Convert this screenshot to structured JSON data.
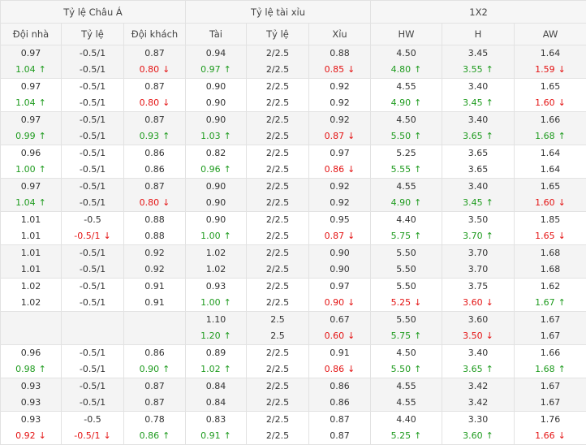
{
  "headers": {
    "groups": [
      "Tỷ lệ Châu Á",
      "Tỷ lệ tài xỉu",
      "1X2"
    ],
    "columns": [
      "Đội nhà",
      "Tỷ lệ",
      "Đội khách",
      "Tài",
      "Tỷ lệ",
      "Xỉu",
      "HW",
      "H",
      "AW"
    ]
  },
  "rows": [
    [
      [
        "0.97",
        "1.04",
        "up"
      ],
      [
        "-0.5/1",
        "-0.5/1",
        "same"
      ],
      [
        "0.87",
        "0.80",
        "down"
      ],
      [
        "0.94",
        "0.97",
        "up"
      ],
      [
        "2/2.5",
        "2/2.5",
        "same"
      ],
      [
        "0.88",
        "0.85",
        "down"
      ],
      [
        "4.50",
        "4.80",
        "up"
      ],
      [
        "3.45",
        "3.55",
        "up"
      ],
      [
        "1.64",
        "1.59",
        "down"
      ]
    ],
    [
      [
        "0.97",
        "1.04",
        "up"
      ],
      [
        "-0.5/1",
        "-0.5/1",
        "same"
      ],
      [
        "0.87",
        "0.80",
        "down"
      ],
      [
        "0.90",
        "0.90",
        "same"
      ],
      [
        "2/2.5",
        "2/2.5",
        "same"
      ],
      [
        "0.92",
        "0.92",
        "same"
      ],
      [
        "4.55",
        "4.90",
        "up"
      ],
      [
        "3.40",
        "3.45",
        "up"
      ],
      [
        "1.65",
        "1.60",
        "down"
      ]
    ],
    [
      [
        "0.97",
        "0.99",
        "up"
      ],
      [
        "-0.5/1",
        "-0.5/1",
        "same"
      ],
      [
        "0.87",
        "0.93",
        "up"
      ],
      [
        "0.90",
        "1.03",
        "up"
      ],
      [
        "2/2.5",
        "2/2.5",
        "same"
      ],
      [
        "0.92",
        "0.87",
        "down"
      ],
      [
        "4.50",
        "5.50",
        "up"
      ],
      [
        "3.40",
        "3.65",
        "up"
      ],
      [
        "1.66",
        "1.68",
        "up"
      ]
    ],
    [
      [
        "0.96",
        "1.00",
        "up"
      ],
      [
        "-0.5/1",
        "-0.5/1",
        "same"
      ],
      [
        "0.86",
        "0.86",
        "same"
      ],
      [
        "0.82",
        "0.96",
        "up"
      ],
      [
        "2/2.5",
        "2/2.5",
        "same"
      ],
      [
        "0.97",
        "0.86",
        "down"
      ],
      [
        "5.25",
        "5.55",
        "up"
      ],
      [
        "3.65",
        "3.65",
        "same"
      ],
      [
        "1.64",
        "1.64",
        "same"
      ]
    ],
    [
      [
        "0.97",
        "1.04",
        "up"
      ],
      [
        "-0.5/1",
        "-0.5/1",
        "same"
      ],
      [
        "0.87",
        "0.80",
        "down"
      ],
      [
        "0.90",
        "0.90",
        "same"
      ],
      [
        "2/2.5",
        "2/2.5",
        "same"
      ],
      [
        "0.92",
        "0.92",
        "same"
      ],
      [
        "4.55",
        "4.90",
        "up"
      ],
      [
        "3.40",
        "3.45",
        "up"
      ],
      [
        "1.65",
        "1.60",
        "down"
      ]
    ],
    [
      [
        "1.01",
        "1.01",
        "same"
      ],
      [
        "-0.5",
        "-0.5/1",
        "down"
      ],
      [
        "0.88",
        "0.88",
        "same"
      ],
      [
        "0.90",
        "1.00",
        "up"
      ],
      [
        "2/2.5",
        "2/2.5",
        "same"
      ],
      [
        "0.95",
        "0.87",
        "down"
      ],
      [
        "4.40",
        "5.75",
        "up"
      ],
      [
        "3.50",
        "3.70",
        "up"
      ],
      [
        "1.85",
        "1.65",
        "down"
      ]
    ],
    [
      [
        "1.01",
        "1.01",
        "same"
      ],
      [
        "-0.5/1",
        "-0.5/1",
        "same"
      ],
      [
        "0.92",
        "0.92",
        "same"
      ],
      [
        "1.02",
        "1.02",
        "same"
      ],
      [
        "2/2.5",
        "2/2.5",
        "same"
      ],
      [
        "0.90",
        "0.90",
        "same"
      ],
      [
        "5.50",
        "5.50",
        "same"
      ],
      [
        "3.70",
        "3.70",
        "same"
      ],
      [
        "1.68",
        "1.68",
        "same"
      ]
    ],
    [
      [
        "1.02",
        "1.02",
        "same"
      ],
      [
        "-0.5/1",
        "-0.5/1",
        "same"
      ],
      [
        "0.91",
        "0.91",
        "same"
      ],
      [
        "0.93",
        "1.00",
        "up"
      ],
      [
        "2/2.5",
        "2/2.5",
        "same"
      ],
      [
        "0.97",
        "0.90",
        "down"
      ],
      [
        "5.50",
        "5.25",
        "down"
      ],
      [
        "3.75",
        "3.60",
        "down"
      ],
      [
        "1.62",
        "1.67",
        "up"
      ]
    ],
    [
      [
        "",
        "",
        "same"
      ],
      [
        "",
        "",
        "same"
      ],
      [
        "",
        "",
        "same"
      ],
      [
        "1.10",
        "1.20",
        "up"
      ],
      [
        "2.5",
        "2.5",
        "same"
      ],
      [
        "0.67",
        "0.60",
        "down"
      ],
      [
        "5.50",
        "5.75",
        "up"
      ],
      [
        "3.60",
        "3.50",
        "down"
      ],
      [
        "1.67",
        "1.67",
        "same"
      ]
    ],
    [
      [
        "0.96",
        "0.98",
        "up"
      ],
      [
        "-0.5/1",
        "-0.5/1",
        "same"
      ],
      [
        "0.86",
        "0.90",
        "up"
      ],
      [
        "0.89",
        "1.02",
        "up"
      ],
      [
        "2/2.5",
        "2/2.5",
        "same"
      ],
      [
        "0.91",
        "0.86",
        "down"
      ],
      [
        "4.50",
        "5.50",
        "up"
      ],
      [
        "3.40",
        "3.65",
        "up"
      ],
      [
        "1.66",
        "1.68",
        "up"
      ]
    ],
    [
      [
        "0.93",
        "0.93",
        "same"
      ],
      [
        "-0.5/1",
        "-0.5/1",
        "same"
      ],
      [
        "0.87",
        "0.87",
        "same"
      ],
      [
        "0.84",
        "0.84",
        "same"
      ],
      [
        "2/2.5",
        "2/2.5",
        "same"
      ],
      [
        "0.86",
        "0.86",
        "same"
      ],
      [
        "4.55",
        "4.55",
        "same"
      ],
      [
        "3.42",
        "3.42",
        "same"
      ],
      [
        "1.67",
        "1.67",
        "same"
      ]
    ],
    [
      [
        "0.93",
        "0.92",
        "down"
      ],
      [
        "-0.5",
        "-0.5/1",
        "down"
      ],
      [
        "0.78",
        "0.86",
        "up"
      ],
      [
        "0.83",
        "0.91",
        "up"
      ],
      [
        "2/2.5",
        "2/2.5",
        "same"
      ],
      [
        "0.87",
        "0.87",
        "same"
      ],
      [
        "4.40",
        "5.25",
        "up"
      ],
      [
        "3.30",
        "3.60",
        "up"
      ],
      [
        "1.76",
        "1.66",
        "down"
      ]
    ]
  ]
}
